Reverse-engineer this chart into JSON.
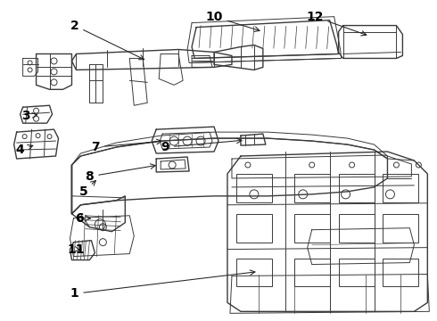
{
  "bg_color": "#ffffff",
  "line_color": "#3a3a3a",
  "label_color": "#000000",
  "label_fontsize": 10,
  "fig_width": 4.9,
  "fig_height": 3.6,
  "dpi": 100,
  "label_positions": {
    "1": [
      0.575,
      0.1,
      0.615,
      0.155
    ],
    "2": [
      0.17,
      0.895,
      0.27,
      0.82
    ],
    "3": [
      0.06,
      0.59,
      0.095,
      0.58
    ],
    "4": [
      0.06,
      0.48,
      0.1,
      0.465
    ],
    "5": [
      0.19,
      0.488,
      0.215,
      0.49
    ],
    "6": [
      0.185,
      0.405,
      0.22,
      0.415
    ],
    "7": [
      0.22,
      0.61,
      0.27,
      0.6
    ],
    "8": [
      0.215,
      0.535,
      0.258,
      0.53
    ],
    "9": [
      0.385,
      0.6,
      0.385,
      0.61
    ],
    "10": [
      0.49,
      0.895,
      0.51,
      0.84
    ],
    "11": [
      0.175,
      0.215,
      0.215,
      0.24
    ],
    "12": [
      0.72,
      0.895,
      0.745,
      0.84
    ]
  }
}
